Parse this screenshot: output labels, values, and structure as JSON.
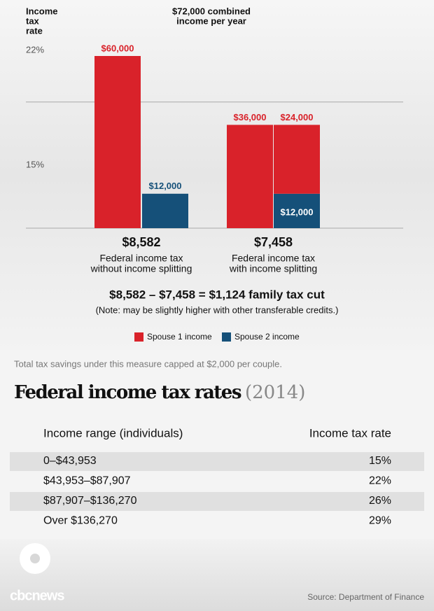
{
  "chart_data": {
    "type": "bar",
    "title": [
      "$72,000 combined",
      "income per year"
    ],
    "y_label": [
      "Income",
      "tax",
      "rate"
    ],
    "rate_labels": [
      "15%",
      "22%"
    ],
    "bracket_line": 43953,
    "categories": [
      null,
      null,
      null,
      null
    ],
    "series": [
      {
        "name": "Spouse 1 income",
        "color": "#d9222a",
        "values": [
          60000,
          null,
          36000,
          24000
        ],
        "value_labels": [
          "$60,000",
          null,
          "$36,000",
          "$24,000"
        ]
      },
      {
        "name": "Spouse 2 income",
        "color": "#155079",
        "values": [
          null,
          12000,
          null,
          12000
        ],
        "value_labels": [
          null,
          "$12,000",
          null,
          "$12,000"
        ]
      }
    ],
    "groups": [
      {
        "total": "$8,582",
        "label": [
          "Federal income tax",
          "without income splitting"
        ]
      },
      {
        "total": "$7,458",
        "label": [
          "Federal income tax",
          "with income splitting"
        ]
      }
    ],
    "ylim": [
      0,
      60000
    ],
    "equation": "$8,582 – $7,458 = $1,124 family tax cut",
    "note": "(Note: may be slightly higher with other transferable credits.)"
  },
  "footnote": "Total tax savings under this measure capped at $2,000 per couple.",
  "table": {
    "title": "Federal income tax rates",
    "subtitle": "(2014)",
    "headers": [
      "Income range (individuals)",
      "Income tax rate"
    ],
    "rows": [
      [
        "0–$43,953",
        "15%"
      ],
      [
        "$43,953–$87,907",
        "22%"
      ],
      [
        "$87,907–$136,270",
        "26%"
      ],
      [
        "Over $136,270",
        "29%"
      ]
    ]
  },
  "logo": "cbcnews",
  "source": "Source: Department of Finance"
}
